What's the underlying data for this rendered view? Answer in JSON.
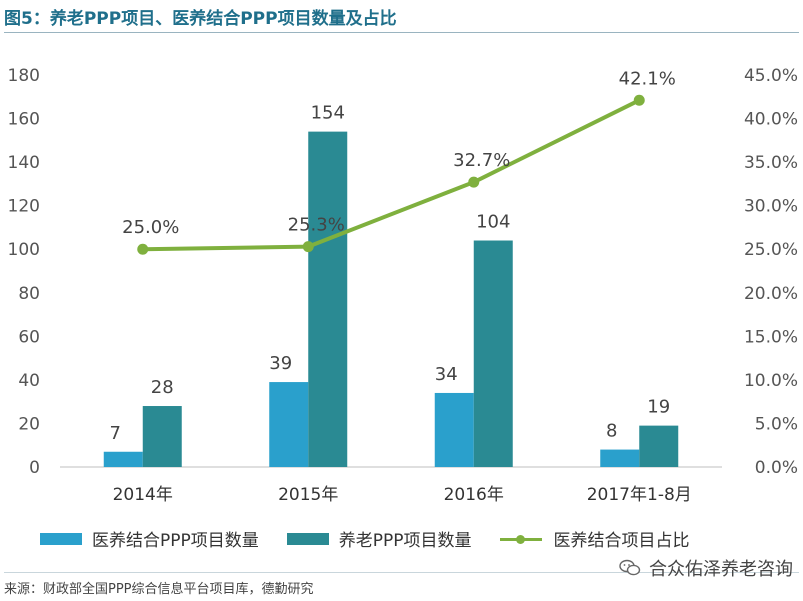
{
  "title": "图5：养老PPP项目、医养结合PPP项目数量及占比",
  "source": "来源：财政部全国PPP综合信息平台项目库，德勤研究",
  "watermark": {
    "text": "合众佑泽养老咨询",
    "icon": "wechat-icon"
  },
  "colors": {
    "bar_a": "#2aa0cc",
    "bar_b": "#2a8a93",
    "line": "#7fb03e",
    "title": "#1f6f8b"
  },
  "chart_data": {
    "type": "bar",
    "categories": [
      "2014年",
      "2015年",
      "2016年",
      "2017年1-8月"
    ],
    "series": [
      {
        "name": "医养结合PPP项目数量",
        "type": "bar",
        "axis": "left",
        "values": [
          7,
          39,
          34,
          8
        ],
        "labels": [
          "7",
          "39",
          "34",
          "8"
        ]
      },
      {
        "name": "养老PPP项目数量",
        "type": "bar",
        "axis": "left",
        "values": [
          28,
          154,
          104,
          19
        ],
        "labels": [
          "28",
          "154",
          "104",
          "19"
        ]
      },
      {
        "name": "医养结合项目占比",
        "type": "line",
        "axis": "right",
        "values": [
          25.0,
          25.3,
          32.7,
          42.1
        ],
        "labels": [
          "25.0%",
          "25.3%",
          "32.7%",
          "42.1%"
        ]
      }
    ],
    "ylim": [
      0,
      180
    ],
    "y_ticks": [
      "0",
      "20",
      "40",
      "60",
      "80",
      "100",
      "120",
      "140",
      "160",
      "180"
    ],
    "y2lim": [
      0,
      45
    ],
    "y2_ticks": [
      "0.0%",
      "5.0%",
      "10.0%",
      "15.0%",
      "20.0%",
      "25.0%",
      "30.0%",
      "35.0%",
      "40.0%",
      "45.0%"
    ],
    "grid": false,
    "legend_position": "bottom"
  }
}
